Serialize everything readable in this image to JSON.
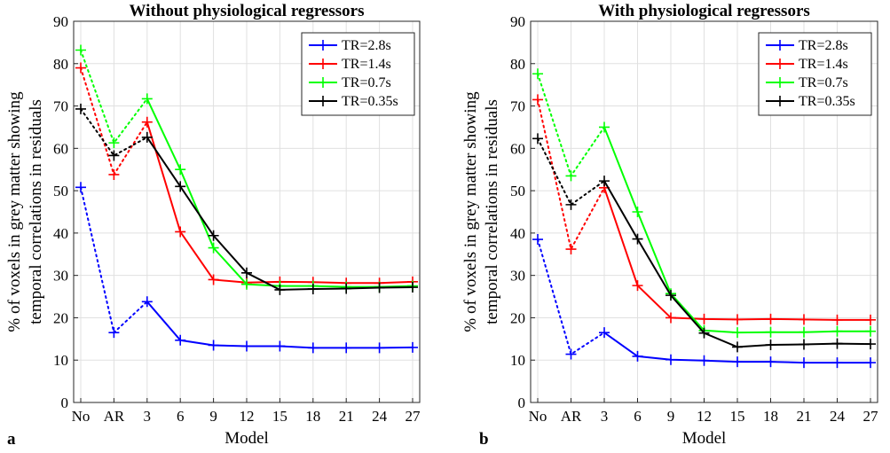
{
  "figure": {
    "panel_labels": [
      "a",
      "b"
    ]
  },
  "chart_data": [
    {
      "type": "line",
      "panel": "a",
      "title": "Without physiological regressors",
      "xlabel": "Model",
      "ylabel": "% of voxels in grey matter showing temporal correlations in residuals",
      "ylabel_lines": [
        "% of voxels in grey matter showing",
        "temporal correlations in residuals"
      ],
      "categories": [
        "No",
        "AR",
        "3",
        "6",
        "9",
        "12",
        "15",
        "18",
        "21",
        "24",
        "27"
      ],
      "ylim": [
        0,
        90
      ],
      "yticks": [
        0,
        10,
        20,
        30,
        40,
        50,
        60,
        70,
        80,
        90
      ],
      "grid": true,
      "legend": "top-right",
      "dotted_segments": "No-AR-3",
      "series": [
        {
          "name": "TR=2.8s",
          "color": "#0000ff",
          "values": [
            50.8,
            16.5,
            23.8,
            14.7,
            13.5,
            13.3,
            13.3,
            12.9,
            12.9,
            12.9,
            13.0
          ]
        },
        {
          "name": "TR=1.4s",
          "color": "#ff0000",
          "values": [
            79.0,
            53.8,
            66.2,
            40.3,
            29.0,
            28.3,
            28.5,
            28.4,
            28.2,
            28.2,
            28.5
          ]
        },
        {
          "name": "TR=0.7s",
          "color": "#00ff00",
          "values": [
            83.2,
            61.3,
            71.7,
            55.0,
            36.5,
            27.9,
            27.5,
            27.5,
            27.3,
            27.3,
            27.5
          ]
        },
        {
          "name": "TR=0.35s",
          "color": "#000000",
          "values": [
            69.3,
            58.3,
            62.6,
            51.0,
            39.4,
            30.6,
            26.6,
            26.8,
            26.9,
            27.1,
            27.2
          ]
        }
      ]
    },
    {
      "type": "line",
      "panel": "b",
      "title": "With physiological regressors",
      "xlabel": "Model",
      "ylabel": "% of voxels in grey matter showing temporal correlations in residuals",
      "ylabel_lines": [
        "% of voxels in grey matter showing",
        "temporal correlations in residuals"
      ],
      "categories": [
        "No",
        "AR",
        "3",
        "6",
        "9",
        "12",
        "15",
        "18",
        "21",
        "24",
        "27"
      ],
      "ylim": [
        0,
        90
      ],
      "yticks": [
        0,
        10,
        20,
        30,
        40,
        50,
        60,
        70,
        80,
        90
      ],
      "grid": true,
      "legend": "top-right",
      "dotted_segments": "No-AR-3",
      "series": [
        {
          "name": "TR=2.8s",
          "color": "#0000ff",
          "values": [
            38.5,
            11.4,
            16.5,
            10.9,
            10.1,
            9.9,
            9.6,
            9.6,
            9.4,
            9.4,
            9.4
          ]
        },
        {
          "name": "TR=1.4s",
          "color": "#ff0000",
          "values": [
            71.5,
            36.2,
            50.7,
            27.6,
            20.0,
            19.7,
            19.6,
            19.7,
            19.6,
            19.5,
            19.5
          ]
        },
        {
          "name": "TR=0.7s",
          "color": "#00ff00",
          "values": [
            77.6,
            53.5,
            65.0,
            45.0,
            25.7,
            17.0,
            16.5,
            16.6,
            16.6,
            16.8,
            16.8
          ]
        },
        {
          "name": "TR=0.35s",
          "color": "#000000",
          "values": [
            62.3,
            46.7,
            52.3,
            38.6,
            25.3,
            16.4,
            13.1,
            13.6,
            13.7,
            13.9,
            13.8
          ]
        }
      ]
    }
  ]
}
